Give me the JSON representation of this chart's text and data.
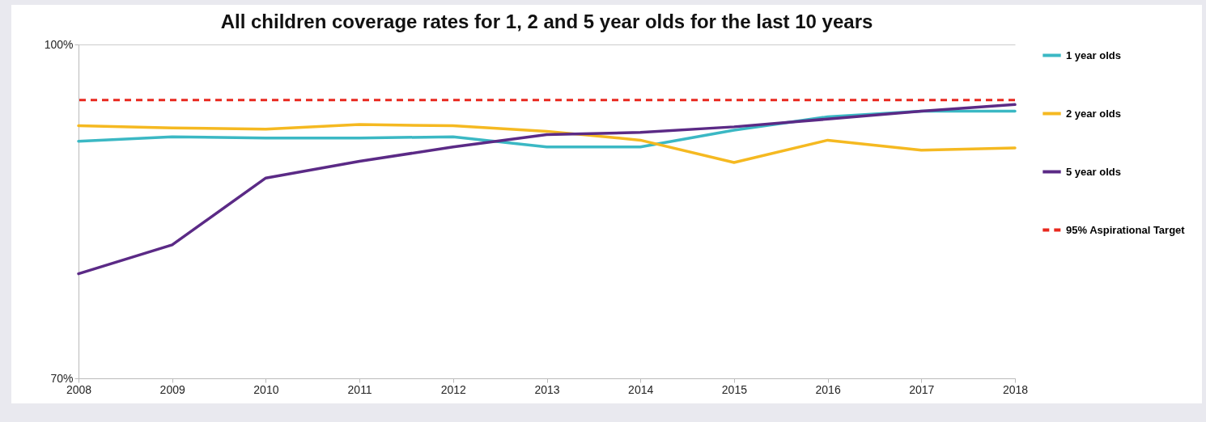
{
  "chart_data": {
    "type": "line",
    "title": "All children coverage rates  for 1, 2 and 5 year olds for the last 10 years",
    "x": [
      2008,
      2009,
      2010,
      2011,
      2012,
      2013,
      2014,
      2015,
      2016,
      2017,
      2018
    ],
    "series": [
      {
        "name": "1 year olds",
        "color": "#3bb8c4",
        "values": [
          91.3,
          91.7,
          91.6,
          91.6,
          91.7,
          90.8,
          90.8,
          92.3,
          93.5,
          94.0,
          94.0
        ]
      },
      {
        "name": "2 year olds",
        "color": "#f5b921",
        "values": [
          92.7,
          92.5,
          92.4,
          92.8,
          92.7,
          92.2,
          91.4,
          89.4,
          91.4,
          90.5,
          90.7
        ]
      },
      {
        "name": "5 year olds",
        "color": "#5b2a86",
        "values": [
          79.4,
          82.0,
          88.0,
          89.5,
          90.8,
          91.9,
          92.1,
          92.6,
          93.3,
          94.0,
          94.6
        ]
      }
    ],
    "ref_lines": [
      {
        "axis": "y",
        "value": 95,
        "label": "95% Aspirational Target",
        "color": "#e8281e",
        "line_style": "dashed"
      }
    ],
    "xlim": [
      2008,
      2018
    ],
    "xticks": [
      2008,
      2009,
      2010,
      2011,
      2012,
      2013,
      2014,
      2015,
      2016,
      2017,
      2018
    ],
    "ylim": [
      70,
      100
    ],
    "yticks": [
      {
        "value": 70,
        "label": "70%"
      },
      {
        "value": 100,
        "label": "100%"
      }
    ],
    "grid": "y",
    "legend": "right"
  }
}
